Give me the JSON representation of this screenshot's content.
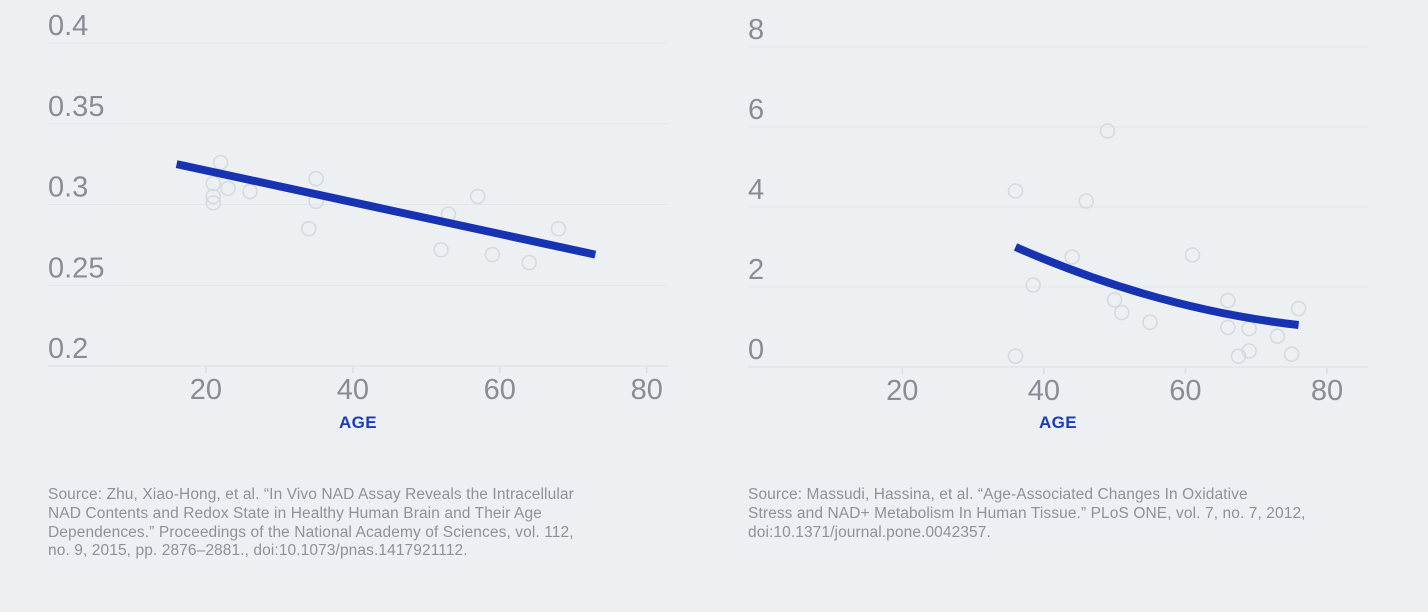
{
  "page": {
    "background": "#edf0f3"
  },
  "colors": {
    "background": "#edf0f3",
    "gridline": "#e3e6ea",
    "axis_line": "#dadde1",
    "tick_label": "#898d93",
    "point_stroke": "#d6dade",
    "trend_blue": "#1733b2",
    "age_label_blue": "#1b3abc",
    "source_text": "#8e9197"
  },
  "chart_data": [
    {
      "type": "scatter",
      "title": "",
      "xlabel": "AGE",
      "ylabel": "",
      "xlim": [
        -1.5,
        82.9
      ],
      "ylim": [
        0.2,
        0.4
      ],
      "grid": true,
      "legend": "none",
      "x_ticks": [
        {
          "value": 20,
          "label": "20"
        },
        {
          "value": 40,
          "label": "40"
        },
        {
          "value": 60,
          "label": "60"
        },
        {
          "value": 80,
          "label": "80"
        }
      ],
      "y_ticks": [
        {
          "value": 0.4,
          "label": "0.4"
        },
        {
          "value": 0.35,
          "label": "0.35"
        },
        {
          "value": 0.3,
          "label": "0.3"
        },
        {
          "value": 0.25,
          "label": "0.25"
        },
        {
          "value": 0.2,
          "label": "0.2"
        }
      ],
      "points": [
        [
          22,
          0.326
        ],
        [
          21,
          0.313
        ],
        [
          23,
          0.31
        ],
        [
          21,
          0.305
        ],
        [
          21,
          0.301
        ],
        [
          26,
          0.308
        ],
        [
          35,
          0.316
        ],
        [
          35,
          0.302
        ],
        [
          34,
          0.285
        ],
        [
          57,
          0.305
        ],
        [
          53,
          0.294
        ],
        [
          52,
          0.272
        ],
        [
          59,
          0.269
        ],
        [
          64,
          0.264
        ],
        [
          68,
          0.285
        ]
      ],
      "trendline": {
        "shape": "linear",
        "start": [
          16,
          0.325
        ],
        "end": [
          73,
          0.269
        ]
      },
      "source": "Source: Zhu, Xiao-Hong, et al. “In Vivo NAD Assay Reveals the Intracellular NAD Contents and Redox State in Healthy Human Brain and Their Age Dependences.” Proceedings of the National Academy of Sciences, vol. 112, no. 9, 2015, pp. 2876–2881., doi:10.1073/pnas.1417921112.",
      "source_lines": [
        "Source: Zhu, Xiao-Hong, et al. “In Vivo NAD Assay Reveals the Intracellular",
        "NAD Contents and Redox State in Healthy Human Brain and Their Age",
        "Dependences.” Proceedings of the National Academy of Sciences, vol. 112,",
        "no. 9, 2015, pp. 2876–2881., doi:10.1073/pnas.1417921112."
      ]
    },
    {
      "type": "scatter",
      "title": "",
      "xlabel": "AGE",
      "ylabel": "",
      "xlim": [
        -1.8,
        85.8
      ],
      "ylim": [
        0,
        8
      ],
      "grid": true,
      "legend": "none",
      "x_ticks": [
        {
          "value": 20,
          "label": "20"
        },
        {
          "value": 40,
          "label": "40"
        },
        {
          "value": 60,
          "label": "60"
        },
        {
          "value": 80,
          "label": "80"
        }
      ],
      "y_ticks": [
        {
          "value": 8,
          "label": "8"
        },
        {
          "value": 6,
          "label": "6"
        },
        {
          "value": 4,
          "label": "4"
        },
        {
          "value": 2,
          "label": "2"
        },
        {
          "value": 0,
          "label": "0"
        }
      ],
      "points": [
        [
          36,
          4.4
        ],
        [
          46,
          4.15
        ],
        [
          49,
          5.9
        ],
        [
          44,
          2.75
        ],
        [
          61,
          2.8
        ],
        [
          38.5,
          2.05
        ],
        [
          50,
          1.68
        ],
        [
          51,
          1.36
        ],
        [
          55,
          1.12
        ],
        [
          66,
          1.66
        ],
        [
          66,
          0.99
        ],
        [
          69,
          0.96
        ],
        [
          73,
          0.77
        ],
        [
          76,
          1.46
        ],
        [
          36,
          0.27
        ],
        [
          67.5,
          0.27
        ],
        [
          69,
          0.4
        ],
        [
          75,
          0.32
        ]
      ],
      "trendline": {
        "shape": "exponential-decay",
        "start": [
          36,
          3.0
        ],
        "control": [
          56,
          1.45
        ],
        "end": [
          76,
          1.05
        ]
      },
      "source": "Source: Massudi, Hassina, et al. “Age-Associated Changes In Oxidative Stress and NAD+ Metabolism In Human Tissue.” PLoS ONE, vol. 7, no. 7, 2012, doi:10.1371/journal.pone.0042357.",
      "source_lines": [
        "Source: Massudi, Hassina, et al. “Age-Associated Changes In Oxidative",
        "Stress and NAD+ Metabolism In Human Tissue.” PLoS ONE, vol. 7, no. 7, 2012,",
        "doi:10.1371/journal.pone.0042357."
      ]
    }
  ]
}
